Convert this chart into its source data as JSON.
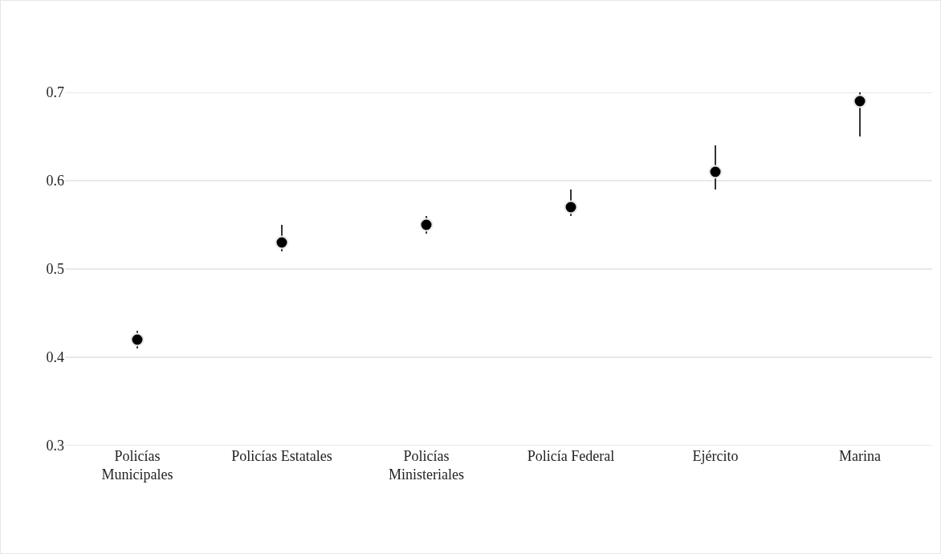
{
  "chart_data": {
    "type": "scatter",
    "categories": [
      "Policías Municipales",
      "Policías Estatales",
      "Policías Ministeriales",
      "Policía Federal",
      "Ejército",
      "Marina"
    ],
    "series": [
      {
        "color": "#000000",
        "values": [
          0.42,
          0.53,
          0.55,
          0.57,
          0.61,
          0.69
        ],
        "errors": [
          [
            0.41,
            0.43
          ],
          [
            0.52,
            0.55
          ],
          [
            0.54,
            0.56
          ],
          [
            0.56,
            0.59
          ],
          [
            0.59,
            0.64
          ],
          [
            0.65,
            0.7
          ]
        ]
      }
    ],
    "ylim": [
      0.3,
      0.7
    ],
    "yticks": [
      0.3,
      0.4,
      0.5,
      0.6,
      0.7
    ],
    "grid": "y",
    "marker": "circle"
  }
}
